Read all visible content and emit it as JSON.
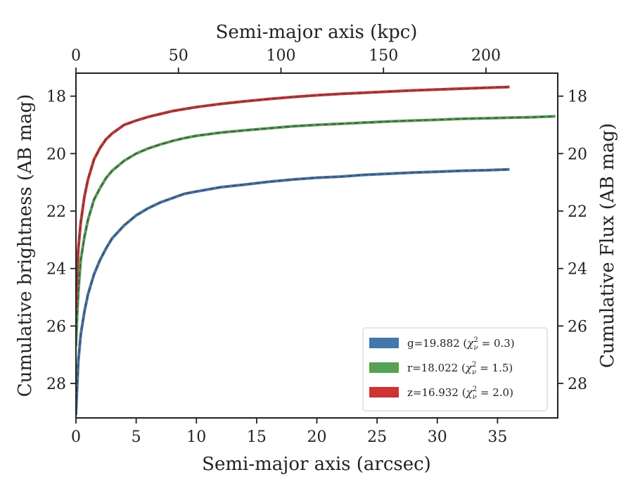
{
  "chart_data": {
    "type": "line",
    "xlabel": "Semi-major axis (arcsec)",
    "ylabel": "Cumulative brightness (AB mag)",
    "x2label": "Semi-major axis (kpc)",
    "y2label": "Cumulative Flux (AB mag)",
    "xlim": [
      0,
      40
    ],
    "ylim": [
      29.2,
      17.2
    ],
    "x2lim": [
      0,
      235
    ],
    "y_inverted": true,
    "xticks": [
      0,
      5,
      10,
      15,
      20,
      25,
      30,
      35
    ],
    "yticks": [
      18,
      20,
      22,
      24,
      26,
      28
    ],
    "x2ticks": [
      0,
      50,
      100,
      150,
      200
    ],
    "grid": false,
    "legend_position": "lower-right",
    "model_line_style": "dashed",
    "series": [
      {
        "name": "g=19.882 (χ²ᵥ = 0.3)",
        "label_parts": {
          "prefix": "g=19.882 (",
          "chi": "χ",
          "sub": "ν",
          "sup": "2",
          "suffix": " = 0.3)"
        },
        "color": "#4477aa",
        "x": [
          0,
          0.1,
          0.2,
          0.4,
          0.7,
          1,
          1.5,
          2,
          2.5,
          3,
          4,
          5,
          6,
          7,
          8,
          9,
          10,
          12,
          14,
          16,
          18,
          20,
          22,
          24,
          26,
          28,
          30,
          32,
          34,
          36
        ],
        "y": [
          29.1,
          28.1,
          27.2,
          26.3,
          25.5,
          24.9,
          24.2,
          23.7,
          23.3,
          22.95,
          22.5,
          22.15,
          21.9,
          21.7,
          21.55,
          21.4,
          21.32,
          21.17,
          21.08,
          20.98,
          20.9,
          20.84,
          20.8,
          20.74,
          20.7,
          20.66,
          20.63,
          20.6,
          20.58,
          20.55
        ]
      },
      {
        "name": "r=18.022 (χ²ᵥ = 1.5)",
        "label_parts": {
          "prefix": "r=18.022 (",
          "chi": "χ",
          "sub": "ν",
          "sup": "2",
          "suffix": " = 1.5)"
        },
        "color": "#55a155",
        "x": [
          0,
          0.1,
          0.2,
          0.4,
          0.7,
          1,
          1.5,
          2,
          2.5,
          3,
          4,
          5,
          6,
          7,
          8,
          9,
          10,
          12,
          14,
          16,
          18,
          20,
          22,
          24,
          26,
          28,
          30,
          32,
          34,
          36,
          38,
          39.8
        ],
        "y": [
          26.7,
          25.6,
          24.8,
          23.7,
          22.9,
          22.3,
          21.6,
          21.2,
          20.85,
          20.6,
          20.25,
          20.0,
          19.82,
          19.68,
          19.56,
          19.46,
          19.38,
          19.27,
          19.19,
          19.12,
          19.05,
          19.0,
          18.96,
          18.92,
          18.88,
          18.85,
          18.82,
          18.79,
          18.77,
          18.75,
          18.73,
          18.7
        ]
      },
      {
        "name": "z=16.932 (χ²ᵥ = 2.0)",
        "label_parts": {
          "prefix": "z=16.932 (",
          "chi": "χ",
          "sub": "ν",
          "sup": "2",
          "suffix": " = 2.0)"
        },
        "color": "#cc3333",
        "x": [
          0,
          0.1,
          0.2,
          0.4,
          0.7,
          1,
          1.5,
          2,
          2.5,
          3,
          4,
          5,
          6,
          7,
          8,
          9,
          10,
          12,
          14,
          16,
          18,
          20,
          22,
          24,
          26,
          28,
          30,
          32,
          34,
          36
        ],
        "y": [
          25.4,
          24.1,
          23.3,
          22.4,
          21.5,
          20.9,
          20.2,
          19.8,
          19.5,
          19.3,
          19.0,
          18.85,
          18.72,
          18.62,
          18.52,
          18.45,
          18.38,
          18.27,
          18.18,
          18.1,
          18.03,
          17.97,
          17.92,
          17.88,
          17.84,
          17.8,
          17.77,
          17.74,
          17.71,
          17.68
        ]
      }
    ]
  }
}
